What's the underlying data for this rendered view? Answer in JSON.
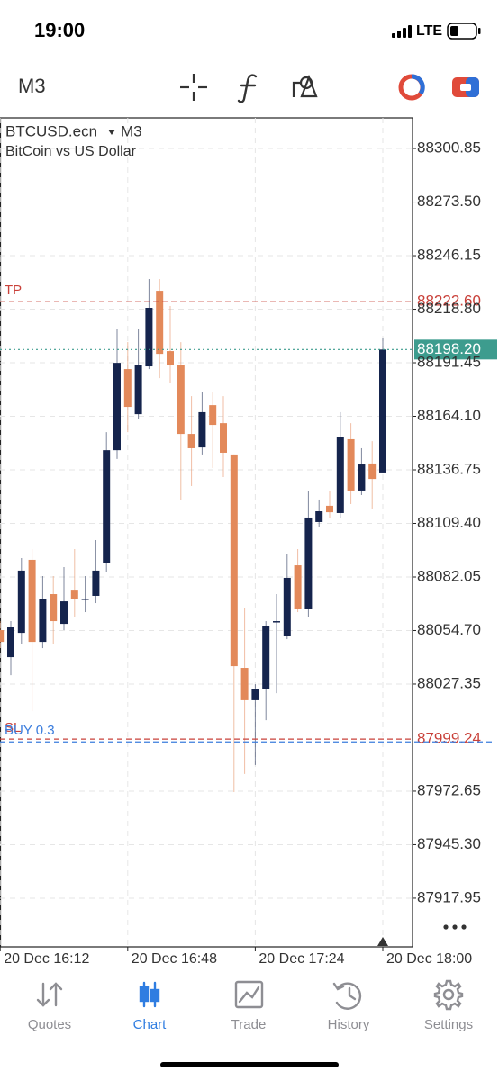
{
  "status_bar": {
    "time": "19:00",
    "network": "LTE"
  },
  "toolbar": {
    "timeframe": "M3"
  },
  "chart_data": {
    "type": "candlestick",
    "symbol": "BTCUSD.ecn",
    "timeframe": "M3",
    "description": "BitCoin vs US Dollar",
    "categories": [
      "20 Dec 16:12",
      null,
      null,
      null,
      null,
      null,
      null,
      null,
      null,
      null,
      null,
      null,
      "20 Dec 16:48",
      null,
      null,
      null,
      null,
      null,
      null,
      null,
      null,
      null,
      null,
      null,
      "20 Dec 17:24",
      null,
      null,
      null,
      null,
      null,
      null,
      null,
      null,
      null,
      null,
      null,
      "20 Dec 18:00"
    ],
    "open": [
      88054.9,
      88041.1,
      88053.5,
      88090.8,
      88048.9,
      88073.3,
      88058.1,
      88075.1,
      88070.6,
      88072.4,
      88089.4,
      88146.8,
      88188.2,
      88165.2,
      88189.6,
      88228.2,
      88197.4,
      88190.5,
      88155.1,
      88148.2,
      88169.8,
      88160.6,
      88144.6,
      88035.6,
      88019.1,
      88025.0,
      88059.1,
      88051.7,
      88088.0,
      88065.5,
      88110.1,
      88118.4,
      88114.7,
      88152.4,
      88126.2,
      88140.0,
      88135.4
    ],
    "high": [
      88059.5,
      88059.5,
      88091.7,
      88096.3,
      88082.5,
      88082.5,
      88087.1,
      88096.3,
      88082.5,
      88100.9,
      88156.0,
      88208.9,
      88202.0,
      88208.9,
      88234.2,
      88234.2,
      88220.4,
      88202.0,
      88174.4,
      88176.7,
      88176.7,
      88174.4,
      88144.6,
      88066.4,
      88027.3,
      88059.5,
      88073.3,
      88094.0,
      88096.3,
      88126.2,
      88121.6,
      88126.2,
      88166.2,
      88160.6,
      88147.8,
      88151.4,
      88204.3
    ],
    "low": [
      88045.7,
      88031.9,
      88048.0,
      88013.5,
      88045.7,
      88048.0,
      88054.9,
      88061.8,
      88064.1,
      88068.7,
      88084.8,
      88142.3,
      88156.0,
      88162.9,
      88188.2,
      88183.6,
      88181.3,
      88121.6,
      88128.5,
      88144.6,
      88137.7,
      88133.1,
      87972.2,
      87981.4,
      87986.0,
      88008.9,
      88022.7,
      88050.3,
      88064.1,
      88061.8,
      88107.8,
      88112.4,
      88112.4,
      88119.3,
      88123.9,
      88117.0,
      88135.4
    ],
    "close": [
      88048.9,
      88056.3,
      88085.3,
      88048.9,
      88071.0,
      88059.5,
      88069.6,
      88071.0,
      88071.0,
      88085.3,
      88146.8,
      88191.4,
      88168.9,
      88190.5,
      88219.5,
      88196.0,
      88190.5,
      88155.1,
      88147.8,
      88166.2,
      88159.7,
      88145.5,
      88036.5,
      88019.1,
      88025.0,
      88057.2,
      88059.5,
      88081.6,
      88065.5,
      88112.4,
      88115.6,
      88115.1,
      88153.3,
      88126.2,
      88139.5,
      88132.1,
      88198.2
    ],
    "up_color": "#15244d",
    "down_color": "#e3895a",
    "ylim": [
      87893.1,
      88316.5
    ],
    "yticks": [
      88300.85,
      {
        "value": 88273.5,
        "label": "88273.50"
      },
      88246.15,
      {
        "value": 88218.8,
        "label": "88218.80"
      },
      88191.45,
      {
        "value": 88164.1,
        "label": "88164.10"
      },
      88136.75,
      {
        "value": 88109.4,
        "label": "88109.40"
      },
      88082.05,
      {
        "value": 88054.7,
        "label": "88054.70"
      },
      88027.35,
      87972.65,
      {
        "value": 87945.3,
        "label": "87945.30"
      },
      87917.95
    ],
    "grid": true,
    "levels": [
      {
        "name": "TP",
        "value": 88222.6,
        "value_label": "88222.60",
        "color": "#c9413a",
        "style": "dashed"
      },
      {
        "value": 88198.2,
        "value_label": "88198.20",
        "color": "#3d9c8e",
        "style": "dotted",
        "boxed": true
      },
      {
        "name": "SL",
        "value": 87999.24,
        "color": "#c9413a",
        "style": "dashed"
      },
      {
        "name": "BUY 0.3",
        "value": 87997.8,
        "color": "#3b7ddd",
        "style": "dashed"
      }
    ]
  },
  "tab_bar": {
    "items": [
      "Quotes",
      "Chart",
      "Trade",
      "History",
      "Settings"
    ],
    "active": 1
  }
}
